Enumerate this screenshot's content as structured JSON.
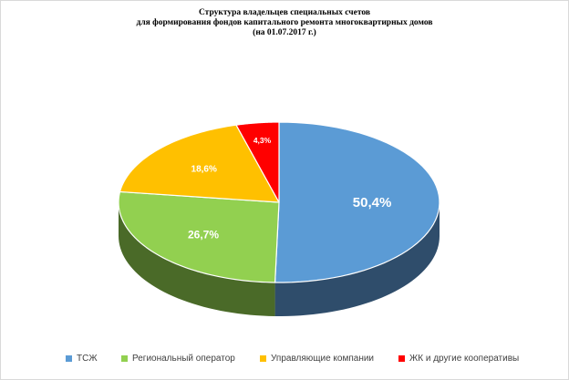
{
  "chart_data": {
    "type": "pie",
    "title": "Структура владельцев специальных счетов",
    "subtitle_line1": "для формирования фондов капитального ремонта многоквартирных домов",
    "subtitle_line2": "(на 01.07.2017 г.)",
    "categories": [
      "ТСЖ",
      "Региональный оператор",
      "Управляющие компании",
      "ЖК и другие кооперативы"
    ],
    "values": [
      50.4,
      26.7,
      18.6,
      4.3
    ],
    "data_labels": [
      "50,4%",
      "26,7%",
      "18,6%",
      "4,3%"
    ],
    "colors": [
      "#5b9bd5",
      "#92d050",
      "#ffc000",
      "#ff0000"
    ],
    "side_colors": [
      "#2f4d6b",
      "#4a6a28",
      "#b88a00",
      "#990000"
    ],
    "legend_position": "bottom",
    "style": "3d"
  }
}
